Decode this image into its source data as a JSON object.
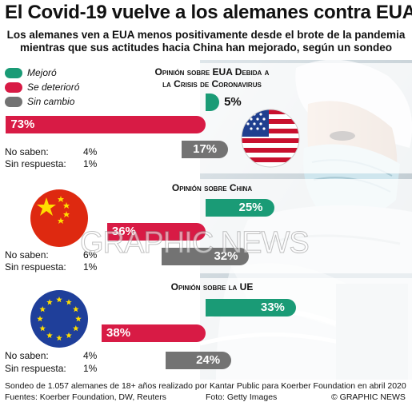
{
  "header": {
    "title": "El Covid-19 vuelve a los alemanes contra EUA",
    "subtitle_line1": "Los alemanes ven a EUA menos positivamente desde el brote de la pandemia",
    "subtitle_line2": "mientras que sus actitudes hacia China han mejorado, según un sondeo"
  },
  "legend": [
    {
      "label": "Mejoró",
      "color": "#1a9b76"
    },
    {
      "label": "Se deterioró",
      "color": "#d81b45"
    },
    {
      "label": "Sin cambio",
      "color": "#737373"
    }
  ],
  "colors": {
    "improved": "#1a9b76",
    "deteriorated": "#d81b45",
    "unchanged": "#737373"
  },
  "chart_data": [
    {
      "type": "bar",
      "title_line1": "Opinión sobre EUA Debida a",
      "title_line2": "la Crisis de Coronavirus",
      "categories": [
        "Mejoró",
        "Se deterioró",
        "Sin cambio"
      ],
      "values": [
        5,
        73,
        17
      ],
      "labels": [
        "5%",
        "73%",
        "17%"
      ],
      "no_saben_label": "No saben:",
      "no_saben": "4%",
      "sin_respuesta_label": "Sin respuesta:",
      "sin_respuesta": "1%",
      "flag": "usa-flag"
    },
    {
      "type": "bar",
      "title_line1": "Opinión sobre China",
      "title_line2": "",
      "categories": [
        "Mejoró",
        "Se deterioró",
        "Sin cambio"
      ],
      "values": [
        25,
        36,
        32
      ],
      "labels": [
        "25%",
        "36%",
        "32%"
      ],
      "no_saben_label": "No saben:",
      "no_saben": "6%",
      "sin_respuesta_label": "Sin respuesta:",
      "sin_respuesta": "1%",
      "flag": "china-flag"
    },
    {
      "type": "bar",
      "title_line1": "Opinión sobre la UE",
      "title_line2": "",
      "categories": [
        "Mejoró",
        "Se deterioró",
        "Sin cambio"
      ],
      "values": [
        33,
        38,
        24
      ],
      "labels": [
        "33%",
        "38%",
        "24%"
      ],
      "no_saben_label": "No saben:",
      "no_saben": "4%",
      "sin_respuesta_label": "Sin respuesta:",
      "sin_respuesta": "1%",
      "flag": "eu-flag"
    }
  ],
  "watermark": "GRAPHIC NEWS",
  "footer": {
    "footnote": "Sondeo de 1.057 alemanes de 18+ años realizado por Kantar Public para Koerber Foundation en abril 2020",
    "sources": "Fuentes: Koerber Foundation, DW, Reuters",
    "photo_credit": "Foto: Getty Images",
    "copyright": "© GRAPHIC NEWS"
  }
}
